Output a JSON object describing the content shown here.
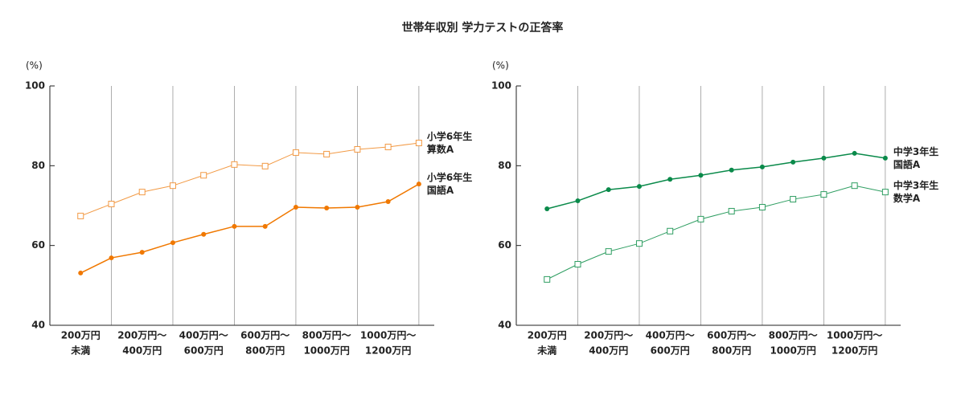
{
  "title": "世帯年収別 学力テストの正答率",
  "chart_data": [
    {
      "type": "line",
      "y_label": "(%)",
      "ylim": [
        40,
        100
      ],
      "yticks": [
        40,
        60,
        80,
        100
      ],
      "categories": [
        "200万円\n未満",
        null,
        "200万円～\n400万円",
        null,
        "400万円～\n600万円",
        null,
        "600万円～\n800万円",
        null,
        "800万円～\n1000万円",
        null,
        "1000万円～\n1200万円",
        null
      ],
      "series": [
        {
          "name": "小学6年生\n算数A",
          "color": "#f29a45",
          "marker": "square",
          "values": [
            67.4,
            70.4,
            73.4,
            75.0,
            77.6,
            80.3,
            79.9,
            83.3,
            82.9,
            84.1,
            84.7,
            85.7
          ]
        },
        {
          "name": "小学6年生\n国語A",
          "color": "#f07800",
          "marker": "circle",
          "values": [
            53.1,
            56.9,
            58.3,
            60.7,
            62.8,
            64.8,
            64.8,
            69.6,
            69.4,
            69.6,
            71.0,
            75.4
          ]
        }
      ]
    },
    {
      "type": "line",
      "y_label": "(%)",
      "ylim": [
        40,
        100
      ],
      "yticks": [
        40,
        60,
        80,
        100
      ],
      "categories": [
        "200万円\n未満",
        null,
        "200万円～\n400万円",
        null,
        "400万円～\n600万円",
        null,
        "600万円～\n800万円",
        null,
        "800万円～\n1000万円",
        null,
        "1000万円～\n1200万円",
        null
      ],
      "series": [
        {
          "name": "中学3年生\n国語A",
          "color": "#0a8a4a",
          "marker": "circle",
          "values": [
            69.2,
            71.2,
            74.0,
            74.8,
            76.6,
            77.6,
            78.9,
            79.7,
            80.9,
            81.9,
            83.1,
            81.9
          ]
        },
        {
          "name": "中学3年生\n数学A",
          "color": "#2f9e62",
          "marker": "square",
          "values": [
            51.5,
            55.3,
            58.5,
            60.5,
            63.6,
            66.6,
            68.6,
            69.6,
            71.6,
            72.8,
            75.0,
            73.4
          ]
        }
      ]
    }
  ]
}
